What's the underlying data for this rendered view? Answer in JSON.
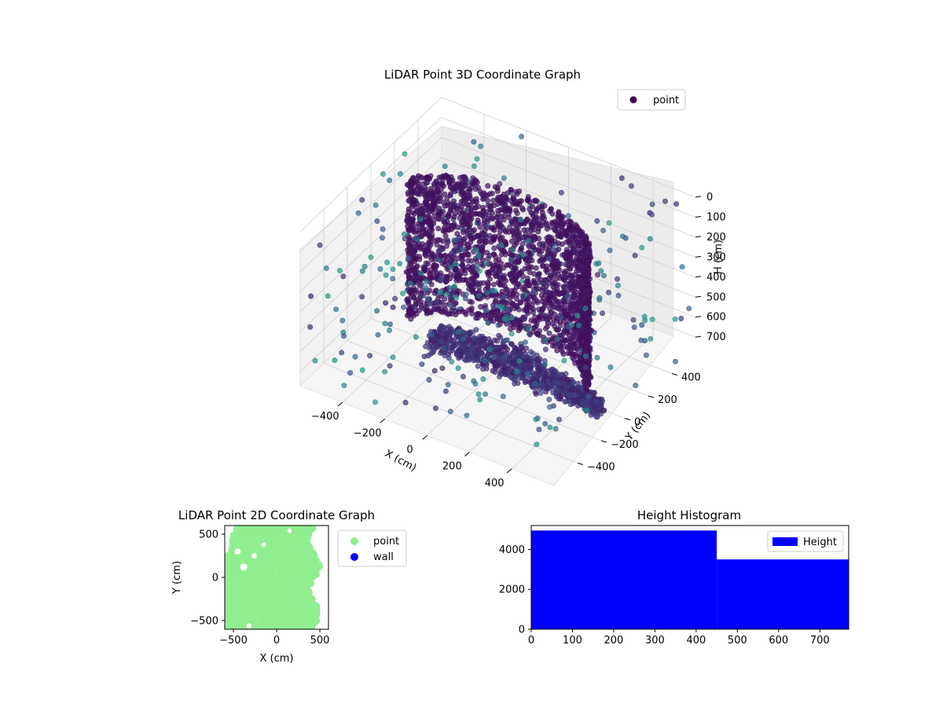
{
  "chart_data": [
    {
      "type": "scatter",
      "projection": "3d",
      "title": "LiDAR Point 3D Coordinate Graph",
      "xlabel": "X (cm)",
      "ylabel": "Y (cm)",
      "zlabel": "H (cm)",
      "xlim": [
        -600,
        600
      ],
      "ylim": [
        -600,
        600
      ],
      "zlim": [
        0,
        770
      ],
      "z_inverted": true,
      "x_ticks": [
        "−400",
        "−200",
        "0",
        "200",
        "400"
      ],
      "y_ticks": [
        "−400",
        "−200",
        "0",
        "200",
        "400"
      ],
      "z_ticks": [
        "0",
        "100",
        "200",
        "300",
        "400",
        "500",
        "600",
        "700"
      ],
      "colormap": "viridis",
      "grid": true,
      "legend": {
        "placement": "upper-right",
        "entries": [
          {
            "label": "point",
            "color": "#440154"
          }
        ]
      },
      "description_of_shape": "dense curved wall arc from x≈-450 to x≈450 at y≈0 to 300 spanning heights 0–700, plus sparse outliers"
    },
    {
      "type": "scatter",
      "title": "LiDAR Point 2D Coordinate Graph",
      "xlabel": "X (cm)",
      "ylabel": "Y (cm)",
      "xlim": [
        -600,
        600
      ],
      "ylim": [
        -600,
        600
      ],
      "x_ticks": [
        "−500",
        "0",
        "500"
      ],
      "y_ticks": [
        "−500",
        "0",
        "500"
      ],
      "series": [
        {
          "name": "point",
          "color": "#90ee90"
        },
        {
          "name": "wall",
          "color": "#0000ff"
        }
      ],
      "legend": {
        "placement": "outside-right",
        "entries": [
          {
            "label": "point",
            "color": "#90ee90"
          },
          {
            "label": "wall",
            "color": "#0000ff"
          }
        ]
      }
    },
    {
      "type": "bar",
      "title": "Height Histogram",
      "xlim": [
        0,
        770
      ],
      "ylim": [
        0,
        5200
      ],
      "x_ticks": [
        "0",
        "100",
        "200",
        "300",
        "400",
        "500",
        "600",
        "700"
      ],
      "y_ticks": [
        "0",
        "2000",
        "4000"
      ],
      "bins": [
        {
          "start": 0,
          "end": 450,
          "count": 4950
        },
        {
          "start": 450,
          "end": 770,
          "count": 3500
        }
      ],
      "series": [
        {
          "name": "Height",
          "color": "#0000ff"
        }
      ],
      "legend": {
        "placement": "upper-right",
        "entries": [
          {
            "label": "Height",
            "color": "#0000ff"
          }
        ]
      }
    }
  ]
}
